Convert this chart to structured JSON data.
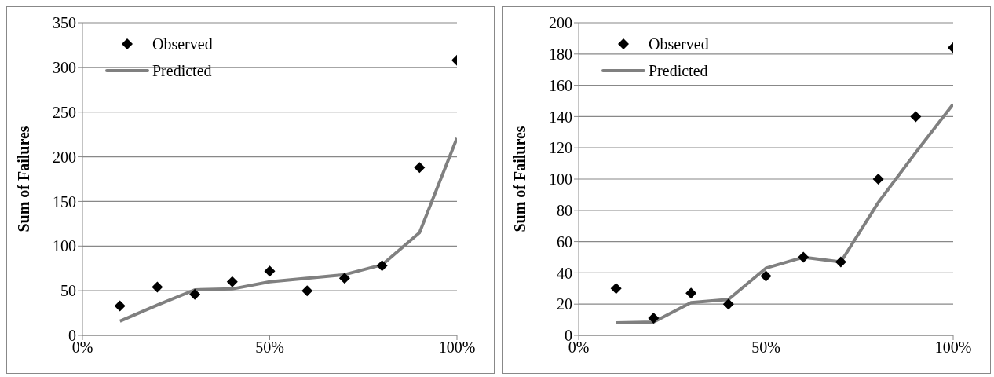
{
  "chart_data": [
    {
      "type": "scatter",
      "ylabel": "Sum of Failures",
      "x": [
        10,
        20,
        30,
        40,
        50,
        60,
        70,
        80,
        90,
        100
      ],
      "xlim": [
        0,
        100
      ],
      "xticks": [
        {
          "value": 0,
          "label": "0%"
        },
        {
          "value": 50,
          "label": "50%"
        },
        {
          "value": 100,
          "label": "100%"
        }
      ],
      "ylim": [
        0,
        350
      ],
      "yticks": [
        0,
        50,
        100,
        150,
        200,
        250,
        300,
        350
      ],
      "grid": "y",
      "legend": "top left",
      "series": [
        {
          "name": "Observed",
          "marker": "diamond",
          "color": "#000000",
          "values": [
            33,
            54,
            46,
            60,
            72,
            50,
            64,
            78,
            188,
            308
          ]
        },
        {
          "name": "Predicted",
          "type": "line",
          "marker": "none",
          "color": "#808080",
          "values": [
            16,
            34,
            51,
            52,
            60,
            64,
            68,
            79,
            115,
            221
          ]
        }
      ]
    },
    {
      "type": "scatter",
      "ylabel": "Sum of Failures",
      "x": [
        10,
        20,
        30,
        40,
        50,
        60,
        70,
        80,
        90,
        100
      ],
      "xlim": [
        0,
        100
      ],
      "xticks": [
        {
          "value": 0,
          "label": "0%"
        },
        {
          "value": 50,
          "label": "50%"
        },
        {
          "value": 100,
          "label": "100%"
        }
      ],
      "ylim": [
        0,
        200
      ],
      "yticks": [
        0,
        20,
        40,
        60,
        80,
        100,
        120,
        140,
        160,
        180,
        200
      ],
      "grid": "y",
      "legend": "top left",
      "series": [
        {
          "name": "Observed",
          "marker": "diamond",
          "color": "#000000",
          "values": [
            30,
            11,
            27,
            20,
            38,
            50,
            47,
            100,
            140,
            184
          ]
        },
        {
          "name": "Predicted",
          "type": "line",
          "marker": "none",
          "color": "#808080",
          "values": [
            8,
            8.5,
            21,
            23,
            43,
            50,
            47,
            85,
            117,
            148
          ]
        }
      ]
    }
  ]
}
